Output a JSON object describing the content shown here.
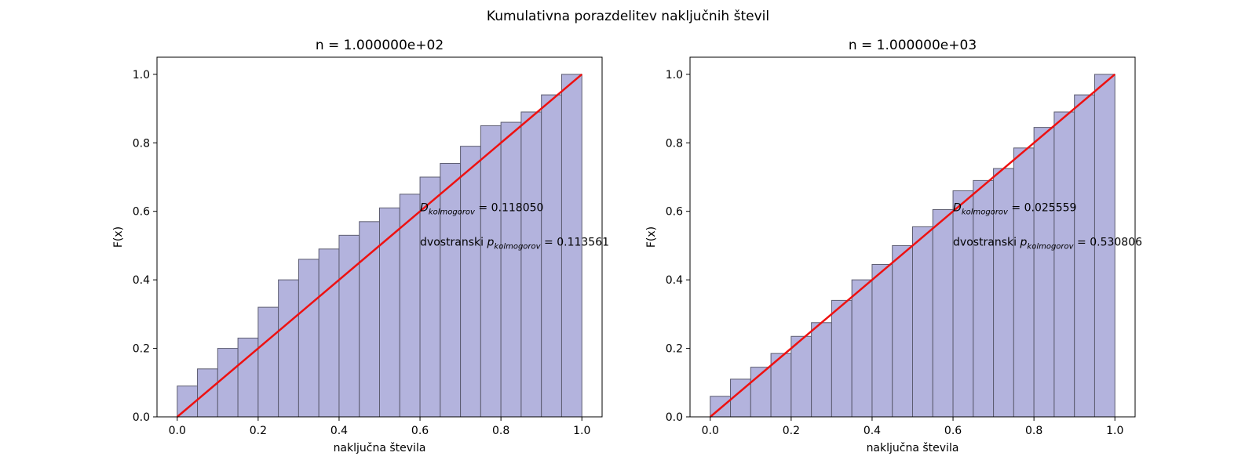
{
  "suptitle": "Kumulativna porazdelitev naključnih števil",
  "colors": {
    "bar_fill": "#b3b3dd",
    "bar_edge": "#5c5c70",
    "line": "#ee1111"
  },
  "chart_data": [
    {
      "type": "bar",
      "title": "n = 1.000000e+02",
      "xlabel": "naključna števila",
      "ylabel": "F(x)",
      "xlim": [
        -0.05,
        1.05
      ],
      "ylim": [
        0,
        1.05
      ],
      "xticks": [
        "0.0",
        "0.2",
        "0.4",
        "0.6",
        "0.8",
        "1.0"
      ],
      "yticks": [
        "0.0",
        "0.2",
        "0.4",
        "0.6",
        "0.8",
        "1.0"
      ],
      "bin_edges": [
        0,
        0.05,
        0.1,
        0.15,
        0.2,
        0.25,
        0.3,
        0.35,
        0.4,
        0.45,
        0.5,
        0.55,
        0.6,
        0.65,
        0.7,
        0.75,
        0.8,
        0.85,
        0.9,
        0.95,
        1.0
      ],
      "values": [
        0.09,
        0.14,
        0.2,
        0.23,
        0.32,
        0.4,
        0.46,
        0.49,
        0.53,
        0.57,
        0.61,
        0.65,
        0.7,
        0.74,
        0.79,
        0.85,
        0.86,
        0.89,
        0.94,
        1.0
      ],
      "reference_line": {
        "x": [
          0,
          1
        ],
        "y": [
          0,
          1
        ]
      },
      "annotations": {
        "d_label": "D",
        "d_sub": "kolmogorov",
        "d_value": " = 0.118050",
        "p_prefix": "dvostranski ",
        "p_label": "p",
        "p_sub": "kolmogorov",
        "p_value": " = 0.113561"
      }
    },
    {
      "type": "bar",
      "title": "n = 1.000000e+03",
      "xlabel": "naključna števila",
      "ylabel": "F(x)",
      "xlim": [
        -0.05,
        1.05
      ],
      "ylim": [
        0,
        1.05
      ],
      "xticks": [
        "0.0",
        "0.2",
        "0.4",
        "0.6",
        "0.8",
        "1.0"
      ],
      "yticks": [
        "0.0",
        "0.2",
        "0.4",
        "0.6",
        "0.8",
        "1.0"
      ],
      "bin_edges": [
        0,
        0.05,
        0.1,
        0.15,
        0.2,
        0.25,
        0.3,
        0.35,
        0.4,
        0.45,
        0.5,
        0.55,
        0.6,
        0.65,
        0.7,
        0.75,
        0.8,
        0.85,
        0.9,
        0.95,
        1.0
      ],
      "values": [
        0.06,
        0.11,
        0.145,
        0.185,
        0.235,
        0.275,
        0.34,
        0.4,
        0.445,
        0.5,
        0.555,
        0.605,
        0.66,
        0.69,
        0.725,
        0.785,
        0.845,
        0.89,
        0.94,
        1.0
      ],
      "reference_line": {
        "x": [
          0,
          1
        ],
        "y": [
          0,
          1
        ]
      },
      "annotations": {
        "d_label": "D",
        "d_sub": "kolmogorov",
        "d_value": " = 0.025559",
        "p_prefix": "dvostranski ",
        "p_label": "p",
        "p_sub": "kolmogorov",
        "p_value": " = 0.530806"
      }
    }
  ]
}
